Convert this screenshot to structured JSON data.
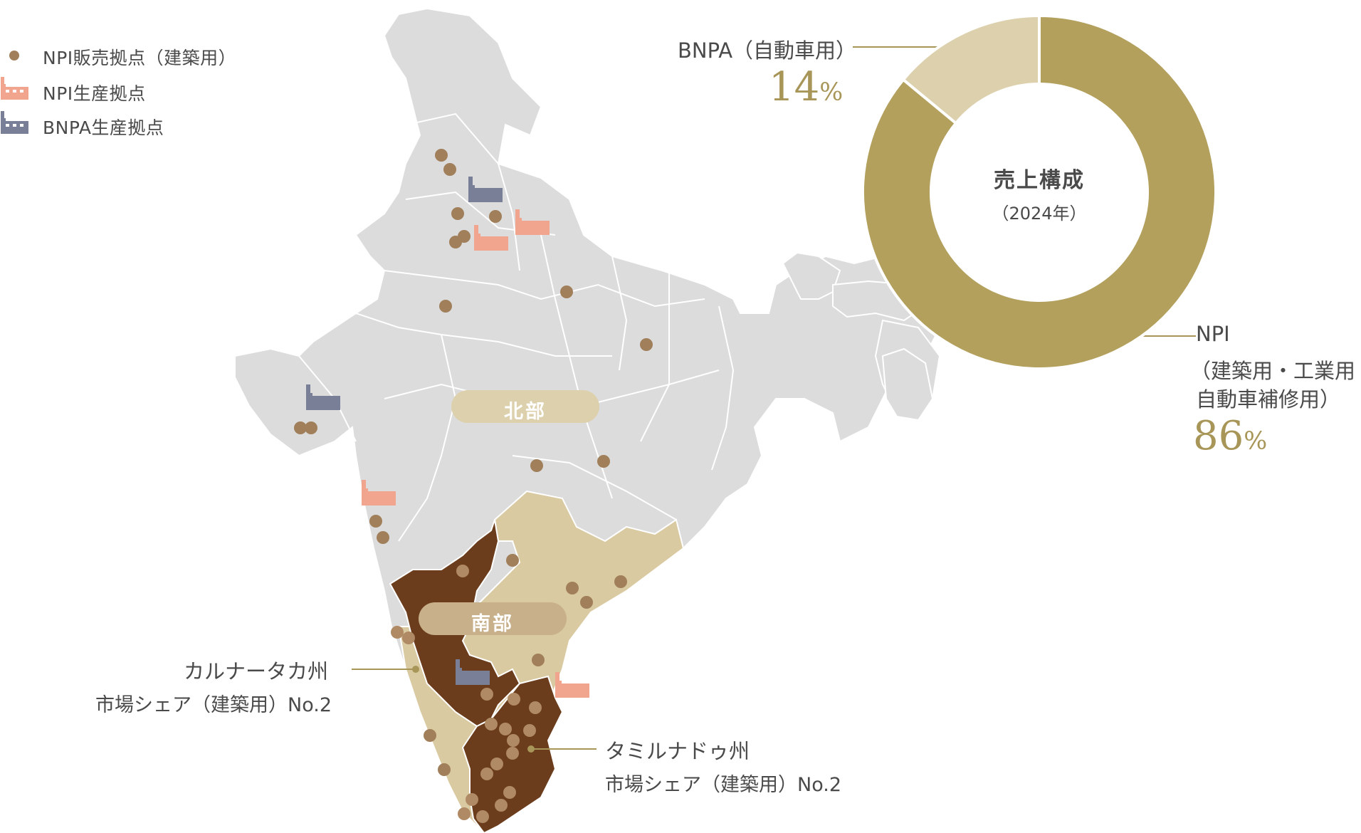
{
  "legend": [
    {
      "label": "NPI販売拠点（建築用）",
      "icon": "sales-dot-icon",
      "color": "#a07f5a"
    },
    {
      "label": "NPI生産拠点",
      "icon": "npi-factory-icon",
      "color": "#f2a58e"
    },
    {
      "label": "BNPA生産拠点",
      "icon": "bnpa-factory-icon",
      "color": "#7a7f98"
    }
  ],
  "regions": {
    "north_label": "北部",
    "south_label": "南部"
  },
  "callouts": {
    "karnataka": {
      "name": "カルナータカ州",
      "share": "市場シェア（建築用）No.2"
    },
    "tamilnadu": {
      "name": "タミルナドゥ州",
      "share": "市場シェア（建築用）No.2"
    }
  },
  "donut": {
    "title": "売上構成",
    "subtitle": "（2024年）",
    "segments": [
      {
        "label": "BNPA（自動車用）",
        "value": 14,
        "value_text": "14",
        "unit": "%",
        "color": "#dcd0ad"
      },
      {
        "label_line1": "NPI",
        "label_line2": "（建築用・工業用・",
        "label_line3": "自動車補修用）",
        "value": 86,
        "value_text": "86",
        "unit": "%",
        "color": "#b3a05d"
      }
    ]
  },
  "colors": {
    "map_land": "#dcdcdc",
    "map_border": "#ffffff",
    "north_pill": "#dcd0ad",
    "south_pill": "#c7b08a",
    "karnataka_tamilnadu": "#6b3d1c",
    "south_other_states": "#d9caa1",
    "sales_dot": "#a07f5a",
    "sales_dot_on_dark": "#b08a64",
    "callout_line": "#a89558"
  }
}
